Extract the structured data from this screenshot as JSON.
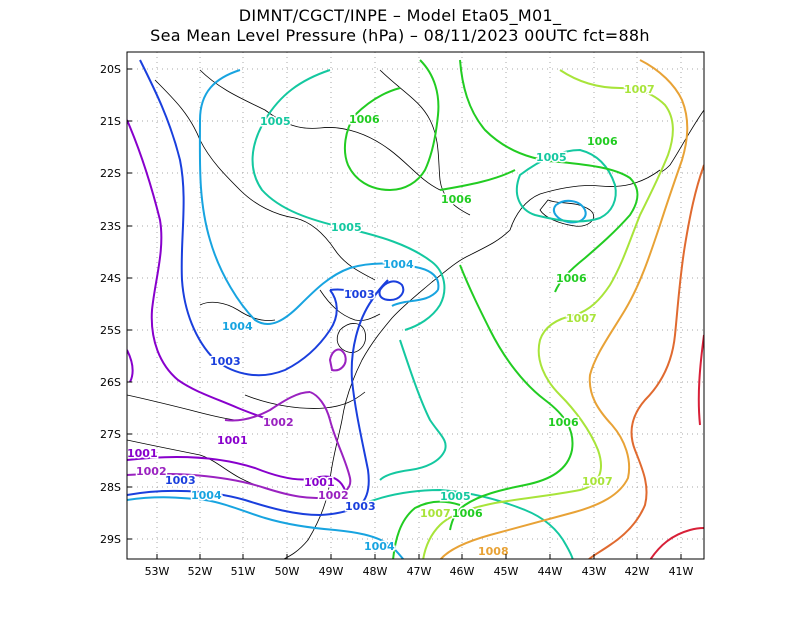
{
  "title": {
    "line1": "DIMNT/CGCT/INPE –  Model Eta05_M01_",
    "line2": "Sea Mean Level Pressure (hPa) – 08/11/2023 00UTC fct=88h"
  },
  "axes": {
    "lon_labels": [
      "53W",
      "52W",
      "51W",
      "50W",
      "49W",
      "48W",
      "47W",
      "46W",
      "45W",
      "44W",
      "43W",
      "42W",
      "41W"
    ],
    "lat_labels": [
      "20S",
      "21S",
      "22S",
      "23S",
      "24S",
      "25S",
      "26S",
      "27S",
      "28S",
      "29S"
    ]
  },
  "colors": {
    "1001": "#8800cc",
    "1002": "#9a22c0",
    "1003": "#1a3fdd",
    "1004": "#18a4e0",
    "1005": "#14c8a0",
    "1006": "#22cc22",
    "1007": "#a8e43a",
    "1008": "#e8a236",
    "1009": "#e06a30",
    "1010": "#d82038",
    "coast": "#000000",
    "grid": "#aaaaaa"
  },
  "contour_labels": [
    {
      "text": "1001",
      "level": "1001"
    },
    {
      "text": "1001",
      "level": "1001"
    },
    {
      "text": "1001",
      "level": "1001"
    },
    {
      "text": "1002",
      "level": "1002"
    },
    {
      "text": "1002",
      "level": "1002"
    },
    {
      "text": "1002",
      "level": "1002"
    },
    {
      "text": "1003",
      "level": "1003"
    },
    {
      "text": "1003",
      "level": "1003"
    },
    {
      "text": "1003",
      "level": "1003"
    },
    {
      "text": "1003",
      "level": "1003"
    },
    {
      "text": "1004",
      "level": "1004"
    },
    {
      "text": "1004",
      "level": "1004"
    },
    {
      "text": "1004",
      "level": "1004"
    },
    {
      "text": "1004",
      "level": "1004"
    },
    {
      "text": "1005",
      "level": "1005"
    },
    {
      "text": "1005",
      "level": "1005"
    },
    {
      "text": "1005",
      "level": "1005"
    },
    {
      "text": "1005",
      "level": "1005"
    },
    {
      "text": "1006",
      "level": "1006"
    },
    {
      "text": "1006",
      "level": "1006"
    },
    {
      "text": "1006",
      "level": "1006"
    },
    {
      "text": "1006",
      "level": "1006"
    },
    {
      "text": "1006",
      "level": "1006"
    },
    {
      "text": "1006",
      "level": "1006"
    },
    {
      "text": "1007",
      "level": "1007"
    },
    {
      "text": "1007",
      "level": "1007"
    },
    {
      "text": "1007",
      "level": "1007"
    },
    {
      "text": "1007",
      "level": "1007"
    },
    {
      "text": "1008",
      "level": "1008"
    }
  ]
}
